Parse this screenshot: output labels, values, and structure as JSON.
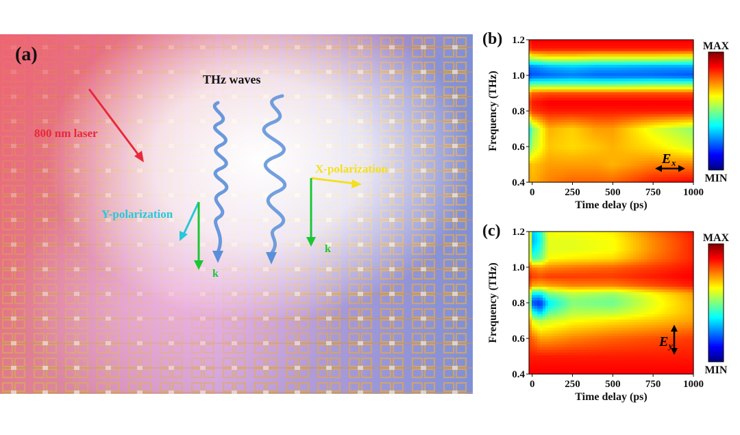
{
  "panel_a": {
    "label": "(a)",
    "thz_label": "THz waves",
    "laser_label": "800 nm laser",
    "x_pol_label": "X-polarization",
    "y_pol_label": "Y-polarization",
    "k_label_left": "k",
    "k_label_right": "k",
    "colors": {
      "laser": "#e8283a",
      "x_pol": "#f2e020",
      "y_pol": "#27c8d8",
      "k": "#18c832",
      "wave": "#5a8fd8",
      "substrate_left": "#e8788a",
      "substrate_right": "#7d92d8",
      "resonator": "#d8a45a"
    },
    "icons": [
      "laser-arrow-icon",
      "thz-wave-icon",
      "polarization-arrow-icon",
      "k-vector-arrow-icon"
    ]
  },
  "colorbar": {
    "max_label": "MAX",
    "min_label": "MIN"
  },
  "chart_data": [
    {
      "type": "heatmap",
      "panel_label": "(b)",
      "xlabel": "Time delay (ps)",
      "ylabel": "Frequency (THz)",
      "x_ticks": [
        "0",
        "250",
        "500",
        "750",
        "1000"
      ],
      "y_ticks": [
        "0.4",
        "0.6",
        "0.8",
        "1.0",
        "1.2"
      ],
      "xlim": [
        -20,
        1000
      ],
      "ylim": [
        0.4,
        1.2
      ],
      "field_label": "E",
      "field_subscript": "x",
      "field_orientation": "horizontal",
      "x": [
        -20,
        0,
        100,
        250,
        400,
        500,
        750,
        1000
      ],
      "y": [
        0.4,
        0.5,
        0.6,
        0.7,
        0.8,
        0.85,
        0.9,
        0.95,
        1.0,
        1.05,
        1.1,
        1.15,
        1.2
      ],
      "z": [
        [
          0.72,
          0.7,
          0.75,
          0.78,
          0.78,
          0.78,
          0.85,
          0.88
        ],
        [
          0.7,
          0.68,
          0.72,
          0.72,
          0.72,
          0.7,
          0.75,
          0.75
        ],
        [
          0.45,
          0.55,
          0.68,
          0.66,
          0.68,
          0.7,
          0.65,
          0.58
        ],
        [
          0.35,
          0.5,
          0.7,
          0.67,
          0.72,
          0.72,
          0.6,
          0.52
        ],
        [
          0.75,
          0.82,
          0.85,
          0.85,
          0.85,
          0.85,
          0.85,
          0.85
        ],
        [
          0.8,
          0.85,
          0.88,
          0.88,
          0.88,
          0.88,
          0.88,
          0.88
        ],
        [
          0.72,
          0.78,
          0.8,
          0.8,
          0.8,
          0.8,
          0.8,
          0.8
        ],
        [
          0.45,
          0.48,
          0.48,
          0.48,
          0.48,
          0.48,
          0.5,
          0.5
        ],
        [
          0.18,
          0.2,
          0.22,
          0.24,
          0.22,
          0.22,
          0.22,
          0.2
        ],
        [
          0.25,
          0.25,
          0.3,
          0.32,
          0.3,
          0.3,
          0.28,
          0.28
        ],
        [
          0.55,
          0.58,
          0.62,
          0.62,
          0.6,
          0.6,
          0.6,
          0.58
        ],
        [
          0.8,
          0.85,
          0.85,
          0.85,
          0.85,
          0.85,
          0.85,
          0.85
        ],
        [
          0.85,
          0.88,
          0.88,
          0.88,
          0.88,
          0.88,
          0.88,
          0.88
        ]
      ]
    },
    {
      "type": "heatmap",
      "panel_label": "(c)",
      "xlabel": "Time delay (ps)",
      "ylabel": "Frequency (THz)",
      "x_ticks": [
        "0",
        "250",
        "500",
        "750",
        "1000"
      ],
      "y_ticks": [
        "0.4",
        "0.6",
        "0.8",
        "1.0",
        "1.2"
      ],
      "xlim": [
        -20,
        1000
      ],
      "ylim": [
        0.4,
        1.2
      ],
      "field_label": "E",
      "field_subscript": "y",
      "field_orientation": "vertical",
      "x": [
        -20,
        0,
        50,
        100,
        250,
        500,
        750,
        1000
      ],
      "y": [
        0.4,
        0.5,
        0.6,
        0.7,
        0.75,
        0.8,
        0.85,
        0.9,
        0.95,
        1.0,
        1.05,
        1.1,
        1.15,
        1.2
      ],
      "z": [
        [
          0.88,
          0.88,
          0.88,
          0.88,
          0.88,
          0.88,
          0.88,
          0.88
        ],
        [
          0.85,
          0.85,
          0.85,
          0.85,
          0.85,
          0.85,
          0.85,
          0.85
        ],
        [
          0.8,
          0.78,
          0.72,
          0.72,
          0.75,
          0.78,
          0.8,
          0.82
        ],
        [
          0.75,
          0.6,
          0.55,
          0.58,
          0.62,
          0.65,
          0.68,
          0.72
        ],
        [
          0.72,
          0.4,
          0.3,
          0.45,
          0.55,
          0.55,
          0.62,
          0.7
        ],
        [
          0.7,
          0.2,
          0.15,
          0.35,
          0.5,
          0.48,
          0.6,
          0.7
        ],
        [
          0.7,
          0.35,
          0.35,
          0.48,
          0.55,
          0.52,
          0.62,
          0.72
        ],
        [
          0.8,
          0.72,
          0.7,
          0.72,
          0.75,
          0.75,
          0.8,
          0.85
        ],
        [
          0.85,
          0.82,
          0.8,
          0.82,
          0.82,
          0.82,
          0.85,
          0.88
        ],
        [
          0.78,
          0.75,
          0.72,
          0.74,
          0.76,
          0.78,
          0.82,
          0.86
        ],
        [
          0.7,
          0.45,
          0.48,
          0.62,
          0.64,
          0.66,
          0.76,
          0.84
        ],
        [
          0.75,
          0.35,
          0.42,
          0.6,
          0.6,
          0.62,
          0.74,
          0.84
        ],
        [
          0.8,
          0.3,
          0.38,
          0.6,
          0.6,
          0.62,
          0.74,
          0.84
        ],
        [
          0.82,
          0.32,
          0.4,
          0.62,
          0.62,
          0.64,
          0.76,
          0.86
        ]
      ]
    }
  ]
}
